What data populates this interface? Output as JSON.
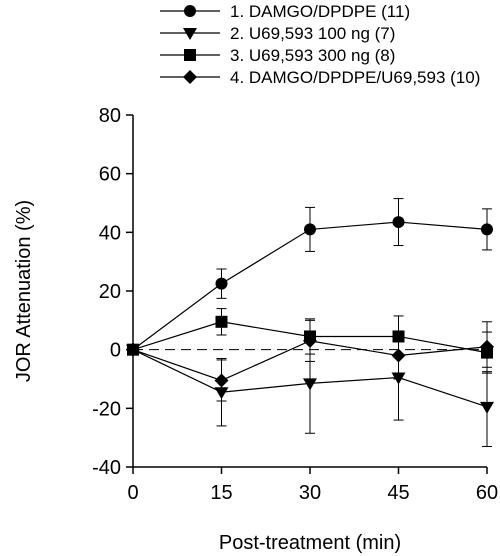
{
  "chart_data": {
    "type": "line",
    "title": "",
    "xlabel": "Post-treatment (min)",
    "ylabel": "JOR Attenuation (%)",
    "xlim": [
      0,
      60
    ],
    "ylim": [
      -40,
      80
    ],
    "xticks": [
      0,
      15,
      30,
      45,
      60
    ],
    "yticks": [
      -40,
      -20,
      0,
      20,
      40,
      60,
      80
    ],
    "grid": false,
    "legend_position": "top-center",
    "reference_line": {
      "y": 0,
      "style": "dashed"
    },
    "series": [
      {
        "name": "1. DAMGO/DPDPE (11)",
        "marker": "circle",
        "x": [
          0,
          15,
          30,
          45,
          60
        ],
        "y": [
          0,
          22.5,
          41,
          43.5,
          41
        ],
        "err": [
          0,
          5,
          7.5,
          8,
          7
        ]
      },
      {
        "name": "2. U69,593 100 ng (7)",
        "marker": "triangle-down",
        "x": [
          0,
          15,
          30,
          45,
          60
        ],
        "y": [
          0,
          -14.5,
          -11.5,
          -9.5,
          -19.5
        ],
        "err": [
          0,
          11.5,
          17,
          14.5,
          13.5
        ]
      },
      {
        "name": "3. U69,593 300 ng (8)",
        "marker": "square",
        "x": [
          0,
          15,
          30,
          45,
          60
        ],
        "y": [
          0,
          9.5,
          4.5,
          4.5,
          -1
        ],
        "err": [
          0,
          4.5,
          6,
          7,
          7
        ]
      },
      {
        "name": "4. DAMGO/DPDPE/U69,593 (10)",
        "marker": "diamond",
        "x": [
          0,
          15,
          30,
          45,
          60
        ],
        "y": [
          0,
          -10.5,
          3,
          -2,
          1
        ],
        "err": [
          0,
          7,
          7,
          8,
          8.5
        ]
      }
    ]
  }
}
